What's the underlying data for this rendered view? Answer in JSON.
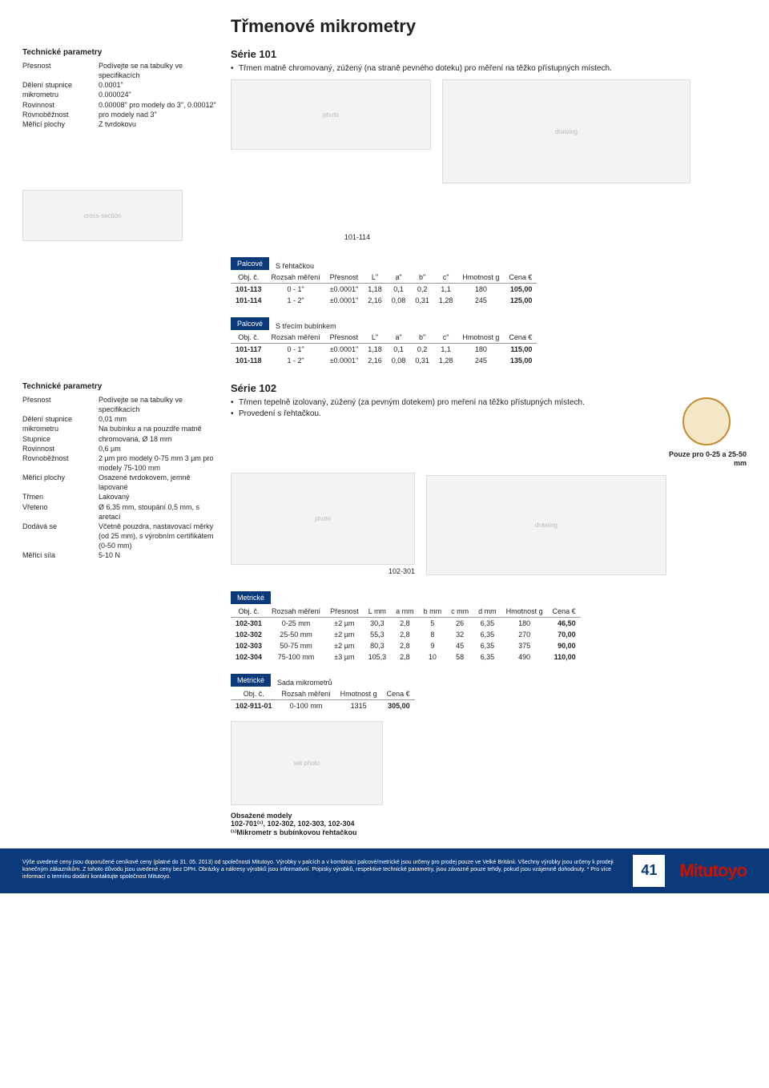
{
  "title": "Třmenové mikrometry",
  "tp1": {
    "heading": "Technické parametry",
    "rows": [
      [
        "Přesnost",
        "Podívejte se na tabulky ve specifikacích"
      ],
      [
        "Dělení stupnice mikrometru",
        "0.0001\""
      ],
      [
        "Rovinnost",
        "0.000024\""
      ],
      [
        "Rovnoběžnost",
        "0.00008\" pro modely do 3\", 0.00012\" pro modely nad 3\""
      ],
      [
        "Měřicí plochy",
        "Z tvrdokovu"
      ]
    ]
  },
  "s101": {
    "heading": "Série 101",
    "bullet": "Třmen matně chromovaný, zúžený (na straně pevného doteku) pro měření na těžko přístupných místech.",
    "label": "101-114"
  },
  "t1": {
    "tag": "Palcové",
    "sub": "S řehtačkou",
    "head": [
      "Obj. č.",
      "Rozsah měření",
      "Přesnost",
      "L\"",
      "a\"",
      "b\"",
      "c\"",
      "Hmotnost g",
      "Cena €"
    ],
    "rows": [
      [
        "101-113",
        "0 - 1\"",
        "±0.0001\"",
        "1,18",
        "0,1",
        "0,2",
        "1,1",
        "180",
        "105,00"
      ],
      [
        "101-114",
        "1 - 2\"",
        "±0.0001\"",
        "2,16",
        "0,08",
        "0,31",
        "1,28",
        "245",
        "125,00"
      ]
    ]
  },
  "t2": {
    "tag": "Palcové",
    "sub": "S třecím bubínkem",
    "head": [
      "Obj. č.",
      "Rozsah měření",
      "Přesnost",
      "L\"",
      "a\"",
      "b\"",
      "c\"",
      "Hmotnost g",
      "Cena €"
    ],
    "rows": [
      [
        "101-117",
        "0 - 1\"",
        "±0.0001\"",
        "1,18",
        "0,1",
        "0,2",
        "1,1",
        "180",
        "115,00"
      ],
      [
        "101-118",
        "1 - 2\"",
        "±0.0001\"",
        "2,16",
        "0,08",
        "0,31",
        "1,28",
        "245",
        "135,00"
      ]
    ]
  },
  "tp2": {
    "heading": "Technické parametry",
    "rows": [
      [
        "Přesnost",
        "Podívejte se na tabulky ve specifikacích"
      ],
      [
        "Dělení stupnice mikrometru",
        "0,01 mm"
      ],
      [
        "Stupnice",
        "Na bubínku a na pouzdře matně chromovaná, Ø 18 mm"
      ],
      [
        "Rovinnost",
        "0,6 µm"
      ],
      [
        "Rovnoběžnost",
        "2 µm pro modely 0-75 mm 3 µm pro modely 75-100 mm"
      ],
      [
        "Měřicí plochy",
        "Osazené tvrdokovem, jemně lapované"
      ],
      [
        "Třmen",
        "Lakovaný"
      ],
      [
        "Vřeteno",
        "Ø 6,35 mm, stoupání 0,5 mm, s aretací"
      ],
      [
        "Dodává se",
        "Včetně pouzdra, nastavovací měrky (od 25 mm), s výrobním certifikátem (0-50 mm)"
      ],
      [
        "Měřicí síla",
        "5-10 N"
      ]
    ]
  },
  "s102": {
    "heading": "Série 102",
    "b1": "Třmen tepelně izolovaný, zúžený (za pevným dotekem) pro meření na těžko přístupných místech.",
    "b2": "Provedení s řehtačkou.",
    "label": "102-301",
    "note": "Pouze pro 0-25 a 25-50 mm"
  },
  "t3": {
    "tag": "Metrické",
    "head": [
      "Obj. č.",
      "Rozsah měření",
      "Přesnost",
      "L mm",
      "a mm",
      "b mm",
      "c mm",
      "d mm",
      "Hmotnost g",
      "Cena €"
    ],
    "rows": [
      [
        "102-301",
        "0-25 mm",
        "±2 µm",
        "30,3",
        "2,8",
        "5",
        "26",
        "6,35",
        "180",
        "46,50"
      ],
      [
        "102-302",
        "25-50 mm",
        "±2 µm",
        "55,3",
        "2,8",
        "8",
        "32",
        "6,35",
        "270",
        "70,00"
      ],
      [
        "102-303",
        "50-75 mm",
        "±2 µm",
        "80,3",
        "2,8",
        "9",
        "45",
        "6,35",
        "375",
        "90,00"
      ],
      [
        "102-304",
        "75-100 mm",
        "±3 µm",
        "105,3",
        "2,8",
        "10",
        "58",
        "6,35",
        "490",
        "110,00"
      ]
    ]
  },
  "t4": {
    "tag": "Metrické",
    "sub": "Sada mikrometrů",
    "head": [
      "Obj. č.",
      "Rozsah měření",
      "Hmotnost g",
      "Cena €"
    ],
    "rows": [
      [
        "102-911-01",
        "0-100 mm",
        "1315",
        "305,00"
      ]
    ]
  },
  "inc": {
    "h": "Obsažené modely",
    "l1": "102-701⁽¹⁾, 102-302, 102-303, 102-304",
    "l2": "⁽¹⁾Mikrometr s bubínkovou řehtačkou"
  },
  "footer": {
    "txt": "Výše uvedené ceny jsou doporučené ceníkové ceny (platné do 31. 05. 2013) od společnosti Mitutoyo. Výrobky v palcích a v kombinaci palcové/metrické jsou určeny pro prodej pouze ve Velké Británii. Všechny výrobky jsou určeny k prodeji konečným zákazníkům. Z tohoto důvodu jsou uvedené ceny bez DPH. Obrázky a nákresy výrobků jsou informativní. Popisky výrobků, respektive technické parametry, jsou závazné pouze tehdy, pokud jsou vzájemně dohodnuty.  * Pro více informací o termínu dodání kontaktujte společnost Mitutoyo.",
    "page": "41",
    "brand": "Mitutoyo"
  }
}
